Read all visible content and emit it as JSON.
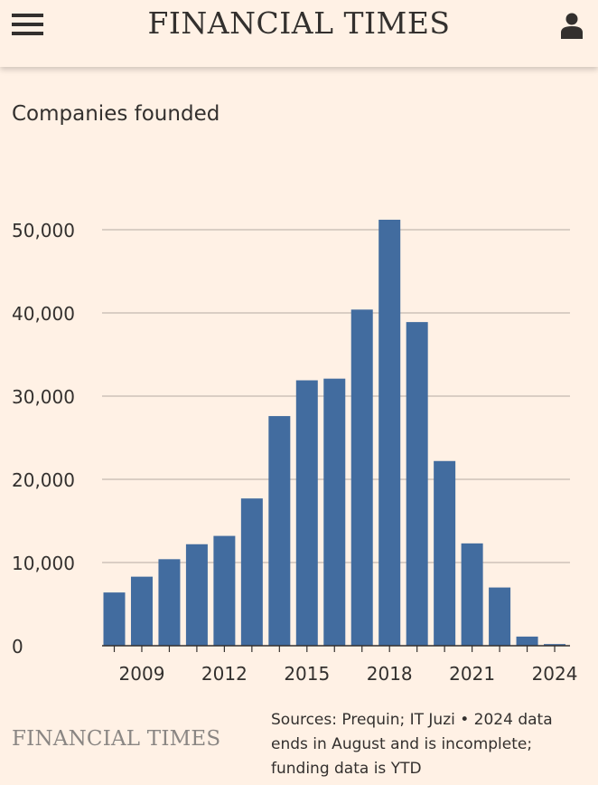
{
  "header": {
    "brand": "FINANCIAL TIMES",
    "menu_icon": "hamburger-menu-icon",
    "user_icon": "user-account-icon"
  },
  "chart_title": "Companies founded",
  "footer": {
    "brand": "FINANCIAL TIMES",
    "source": "Sources: Prequin; IT Juzi • 2024 data ends in August and is incomplete; funding data is YTD"
  },
  "colors": {
    "background": "#fff1e5",
    "bar": "#426c9f",
    "gridline": "#cdc3ba",
    "text": "#33302e",
    "muted_brand": "#8a8683"
  },
  "chart_data": {
    "type": "bar",
    "title": "Companies founded",
    "xlabel": "",
    "ylabel": "",
    "categories": [
      2008,
      2009,
      2010,
      2011,
      2012,
      2013,
      2014,
      2015,
      2016,
      2017,
      2018,
      2019,
      2020,
      2021,
      2022,
      2023,
      2024
    ],
    "values": [
      6400,
      8300,
      10400,
      12200,
      13200,
      17700,
      27600,
      31900,
      32100,
      40400,
      51200,
      38900,
      22200,
      12300,
      7000,
      1100,
      200
    ],
    "x_tick_labels": [
      "2009",
      "2012",
      "2015",
      "2018",
      "2021",
      "2024"
    ],
    "y_ticks": [
      0,
      10000,
      20000,
      30000,
      40000,
      50000
    ],
    "y_tick_labels": [
      "0",
      "10,000",
      "20,000",
      "30,000",
      "40,000",
      "50,000"
    ],
    "ylim": [
      0,
      50000
    ],
    "grid": true,
    "legend": "none"
  }
}
